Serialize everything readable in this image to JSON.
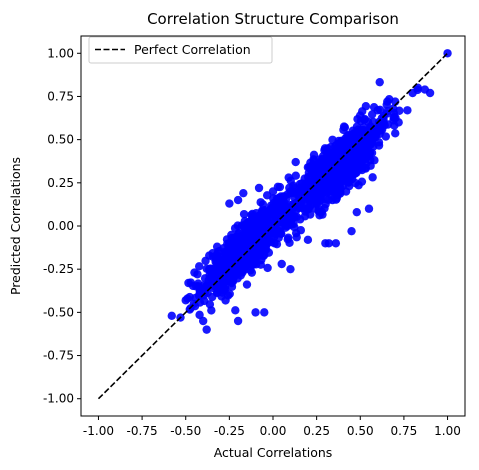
{
  "chart_data": {
    "type": "scatter",
    "title": "Correlation Structure Comparison",
    "xlabel": "Actual Correlations",
    "ylabel": "Predicted Correlations",
    "xlim": [
      -1.1,
      1.1
    ],
    "ylim": [
      -1.1,
      1.1
    ],
    "x_ticks": [
      "-1.00",
      "-0.75",
      "-0.50",
      "-0.25",
      "0.00",
      "0.25",
      "0.50",
      "0.75",
      "1.00"
    ],
    "y_ticks": [
      "-1.00",
      "-0.75",
      "-0.50",
      "-0.25",
      "0.00",
      "0.25",
      "0.50",
      "0.75",
      "1.00"
    ],
    "grid": false,
    "legend": {
      "position": "upper-left",
      "entries": [
        "Perfect Correlation"
      ]
    },
    "reference_line": {
      "name": "Perfect Correlation",
      "style": "dashed",
      "color": "#000000",
      "x": [
        -1,
        1
      ],
      "y": [
        -1,
        1
      ]
    },
    "point_color": "#0000ff",
    "clusters": [
      {
        "x_center": -0.15,
        "y_center": -0.12,
        "count": 650,
        "x_spread": 0.13,
        "y_spread_resid": 0.08,
        "slope": 0.9
      },
      {
        "x_center": 0.38,
        "y_center": 0.35,
        "count": 750,
        "x_spread": 0.14,
        "y_spread_resid": 0.08,
        "slope": 0.9
      }
    ],
    "points": [
      {
        "x": 1.0,
        "y": 1.0
      },
      {
        "x": -0.58,
        "y": -0.52
      },
      {
        "x": -0.53,
        "y": -0.53
      },
      {
        "x": -0.5,
        "y": -0.43
      },
      {
        "x": -0.49,
        "y": -0.42
      },
      {
        "x": -0.38,
        "y": -0.6
      },
      {
        "x": -0.4,
        "y": -0.55
      },
      {
        "x": -0.44,
        "y": -0.35
      },
      {
        "x": -0.45,
        "y": -0.27
      },
      {
        "x": -0.32,
        "y": -0.12
      },
      {
        "x": -0.25,
        "y": 0.13
      },
      {
        "x": -0.2,
        "y": 0.15
      },
      {
        "x": -0.17,
        "y": 0.19
      },
      {
        "x": -0.08,
        "y": 0.22
      },
      {
        "x": 0.0,
        "y": 0.2
      },
      {
        "x": 0.1,
        "y": 0.2
      },
      {
        "x": 0.09,
        "y": 0.28
      },
      {
        "x": 0.13,
        "y": 0.37
      },
      {
        "x": 0.2,
        "y": 0.34
      },
      {
        "x": 0.25,
        "y": 0.35
      },
      {
        "x": 0.12,
        "y": 0.05
      },
      {
        "x": 0.2,
        "y": -0.08
      },
      {
        "x": 0.3,
        "y": -0.1
      },
      {
        "x": 0.32,
        "y": -0.1
      },
      {
        "x": 0.36,
        "y": -0.1
      },
      {
        "x": 0.45,
        "y": -0.03
      },
      {
        "x": 0.48,
        "y": 0.08
      },
      {
        "x": 0.55,
        "y": 0.1
      },
      {
        "x": 0.1,
        "y": -0.25
      },
      {
        "x": 0.05,
        "y": -0.22
      },
      {
        "x": -0.05,
        "y": -0.5
      },
      {
        "x": -0.1,
        "y": -0.5
      },
      {
        "x": -0.2,
        "y": -0.55
      },
      {
        "x": 0.6,
        "y": 0.67
      },
      {
        "x": 0.7,
        "y": 0.72
      },
      {
        "x": 0.77,
        "y": 0.67
      },
      {
        "x": 0.8,
        "y": 0.77
      },
      {
        "x": 0.83,
        "y": 0.8
      },
      {
        "x": 0.87,
        "y": 0.79
      },
      {
        "x": 0.9,
        "y": 0.77
      },
      {
        "x": 0.72,
        "y": 0.6
      },
      {
        "x": 0.6,
        "y": 0.57
      }
    ]
  }
}
